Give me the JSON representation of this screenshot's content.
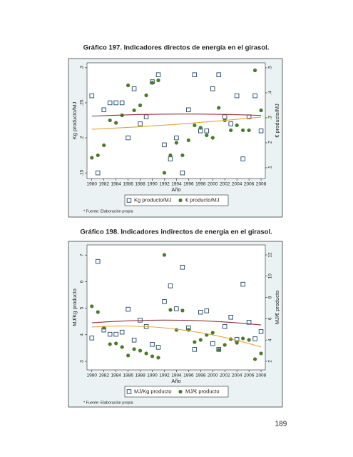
{
  "chart_data": [
    {
      "type": "scatter",
      "title": "Gráfico 197. Indicadores directos de energía en el girasol.",
      "xlabel": "Año",
      "ylabel": "Kg producto/MJ",
      "y2label": "€ producto/MJ",
      "note": "* Fuente: Elaboración propia",
      "x": [
        1980,
        1981,
        1982,
        1983,
        1984,
        1985,
        1986,
        1987,
        1988,
        1989,
        1990,
        1991,
        1992,
        1993,
        1994,
        1995,
        1996,
        1997,
        1998,
        1999,
        2000,
        2001,
        2002,
        2003,
        2004,
        2005,
        2006,
        2007,
        2008
      ],
      "xlim": [
        1979.2,
        2008.7
      ],
      "xticks": [
        1980,
        1982,
        1984,
        1986,
        1988,
        1990,
        1992,
        1994,
        1996,
        1998,
        2000,
        2002,
        2004,
        2006,
        2008
      ],
      "ylim": [
        0.142,
        0.307
      ],
      "yticks": [
        {
          "value": 0.15,
          "label": ".15"
        },
        {
          "value": 0.2,
          "label": ".2"
        },
        {
          "value": 0.25,
          "label": ".25"
        },
        {
          "value": 0.3,
          "label": ".3"
        }
      ],
      "y2lim": [
        0.057,
        0.52
      ],
      "y2ticks": [
        {
          "value": 0.1,
          "label": ".1"
        },
        {
          "value": 0.2,
          "label": ".2"
        },
        {
          "value": 0.3,
          "label": ".3"
        },
        {
          "value": 0.4,
          "label": ".4"
        },
        {
          "value": 0.5,
          "label": ".5"
        }
      ],
      "series": [
        {
          "name": "Kg producto/MJ",
          "marker": "square",
          "color": "#1a476f",
          "values": [
            0.26,
            0.15,
            0.24,
            0.25,
            0.25,
            0.25,
            0.2,
            0.27,
            0.22,
            0.23,
            0.28,
            0.29,
            0.19,
            0.17,
            0.2,
            0.15,
            0.24,
            0.29,
            0.21,
            0.21,
            0.27,
            0.29,
            0.23,
            0.22,
            0.26,
            0.17,
            0.23,
            0.26,
            0.21
          ]
        },
        {
          "name": "€ producto/MJ",
          "marker": "circle",
          "color": "#4b7a2a",
          "axis": "y2",
          "values": [
            0.14,
            0.15,
            0.19,
            0.29,
            0.28,
            0.31,
            0.43,
            0.33,
            0.35,
            0.39,
            0.44,
            0.45,
            0.08,
            0.15,
            0.2,
            0.15,
            0.21,
            0.27,
            0.26,
            0.23,
            0.22,
            0.34,
            0.29,
            0.25,
            0.27,
            0.25,
            0.25,
            0.49,
            0.33
          ]
        },
        {
          "marker": "line",
          "color": "#90353b",
          "x": [
            1980,
            1994,
            2008
          ],
          "values": [
            0.231,
            0.234,
            0.232
          ]
        },
        {
          "marker": "line",
          "color": "#e8a33a",
          "axis": "y2",
          "x": [
            1980,
            1994,
            2008
          ],
          "values": [
            0.254,
            0.274,
            0.303
          ]
        }
      ]
    },
    {
      "type": "scatter",
      "title": "Gráfico 198. Indicadores indirectos de energía en el girasol.",
      "xlabel": "Año",
      "ylabel": "MJ/Kg producto",
      "y2label": "MJ/€ producto",
      "note": "* Fuente: Elaboración propia",
      "x": [
        1980,
        1981,
        1982,
        1983,
        1984,
        1985,
        1986,
        1987,
        1988,
        1989,
        1990,
        1991,
        1992,
        1993,
        1994,
        1995,
        1996,
        1997,
        1998,
        1999,
        2000,
        2001,
        2002,
        2003,
        2004,
        2005,
        2006,
        2007,
        2008
      ],
      "xlim": [
        1979.2,
        2008.7
      ],
      "xticks": [
        1980,
        1982,
        1984,
        1986,
        1988,
        1990,
        1992,
        1994,
        1996,
        1998,
        2000,
        2002,
        2004,
        2006,
        2008
      ],
      "ylim": [
        2.68,
        7.38
      ],
      "yticks": [
        3,
        4,
        5,
        6,
        7
      ],
      "y2lim": [
        1.19,
        12.94
      ],
      "y2ticks": [
        2,
        4,
        6,
        8,
        10,
        12
      ],
      "series": [
        {
          "name": "MJ/Kg producto",
          "marker": "square",
          "color": "#1a476f",
          "values": [
            3.88,
            6.76,
            4.18,
            4.02,
            4.02,
            4.1,
            4.96,
            3.8,
            4.55,
            4.31,
            3.64,
            3.53,
            5.25,
            5.84,
            4.98,
            6.54,
            4.26,
            3.45,
            4.85,
            4.9,
            3.67,
            3.45,
            4.31,
            4.66,
            3.83,
            5.9,
            4.47,
            3.85,
            4.12
          ]
        },
        {
          "name": "MJ/€ producto",
          "marker": "circle",
          "color": "#4b7a2a",
          "axis": "y2",
          "values": [
            7.17,
            6.63,
            5.15,
            3.61,
            3.68,
            3.34,
            2.54,
            3.14,
            3.0,
            2.74,
            2.47,
            2.34,
            12,
            6.83,
            4.95,
            6.77,
            4.95,
            3.81,
            4.01,
            4.48,
            4.68,
            3.07,
            3.54,
            4.08,
            3.74,
            4.15,
            4.01,
            2.2,
            2.74
          ]
        },
        {
          "marker": "line",
          "color": "#90353b",
          "x": [
            1980,
            1994,
            2008
          ],
          "values": [
            4.45,
            4.55,
            4.37
          ]
        },
        {
          "marker": "line",
          "color": "#e8a33a",
          "axis": "y2",
          "x": [
            1980,
            1994,
            2008
          ],
          "values": [
            5.22,
            5.02,
            3.34
          ]
        }
      ]
    }
  ],
  "page_number": "189"
}
